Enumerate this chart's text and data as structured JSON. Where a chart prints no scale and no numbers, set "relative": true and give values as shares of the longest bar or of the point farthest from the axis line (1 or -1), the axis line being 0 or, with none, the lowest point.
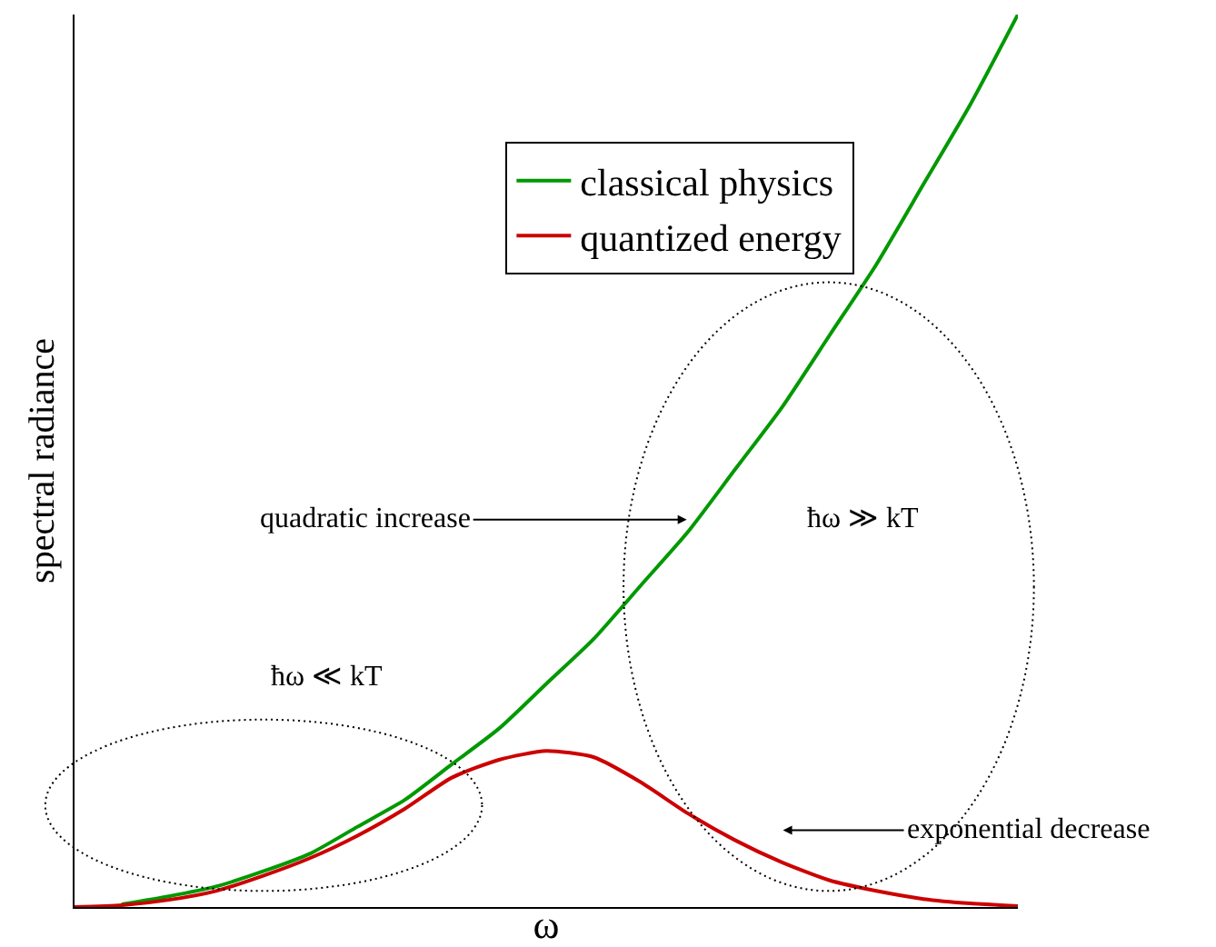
{
  "chart_data": {
    "type": "line",
    "relative": true,
    "xlabel": "ω",
    "ylabel": "spectral radiance",
    "legend": "top right",
    "categories": [
      null,
      null,
      null,
      null,
      null,
      null,
      null,
      null,
      null,
      null,
      null,
      null,
      null,
      null,
      null,
      null,
      null,
      null,
      null,
      null,
      null
    ],
    "series": [
      {
        "name": "classical physics",
        "color": "#009900",
        "values": [
          null,
          0.003,
          0.012,
          0.023,
          0.04,
          0.06,
          0.09,
          0.12,
          0.16,
          0.2,
          0.25,
          0.3,
          0.36,
          0.42,
          0.49,
          0.56,
          0.64,
          0.72,
          0.81,
          0.9,
          1
        ]
      },
      {
        "name": "quantized energy",
        "color": "#cc0000",
        "values": [
          0,
          0.002,
          0.008,
          0.018,
          0.035,
          0.055,
          0.08,
          0.11,
          0.145,
          0.165,
          0.175,
          0.168,
          0.14,
          0.105,
          0.075,
          0.05,
          0.03,
          0.018,
          0.009,
          0.004,
          0.001
        ]
      }
    ],
    "annotations": [
      "quadratic increase",
      "ħω ≫ kT",
      "ħω ≪ kT",
      "exponential decrease"
    ]
  }
}
